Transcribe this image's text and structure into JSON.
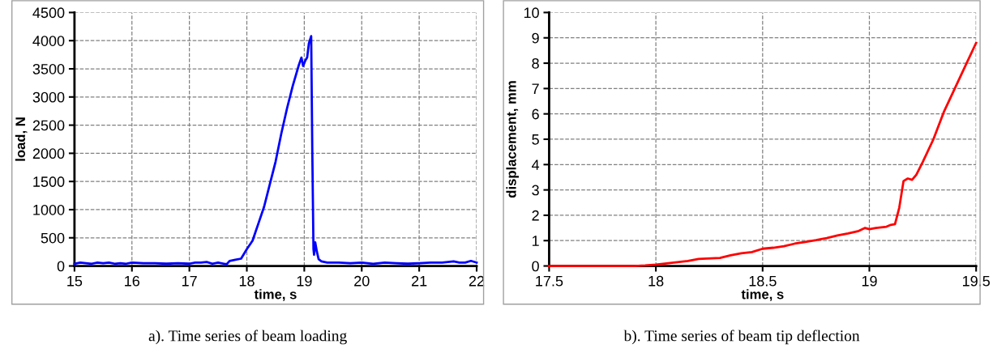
{
  "chart_data": [
    {
      "type": "line",
      "xlabel": "time, s",
      "ylabel": "load, N",
      "annotations": [
        "a). Time series of beam loading"
      ],
      "xlim": [
        15,
        22
      ],
      "xticks": [
        15,
        16,
        17,
        18,
        19,
        20,
        21,
        22
      ],
      "ylim": [
        0,
        4500
      ],
      "yticks": [
        0,
        500,
        1000,
        1500,
        2000,
        2500,
        3000,
        3500,
        4000,
        4500
      ],
      "grid": true,
      "marker": "none",
      "line_style": "solid",
      "series": [
        {
          "color": "#0000ff",
          "x": [
            15,
            15.1,
            15.2,
            15.3,
            15.4,
            15.5,
            15.6,
            15.7,
            15.8,
            15.9,
            16,
            16.2,
            16.4,
            16.6,
            16.8,
            17,
            17.1,
            17.2,
            17.3,
            17.4,
            17.5,
            17.6,
            17.65,
            17.7,
            17.8,
            17.9,
            18,
            18.1,
            18.15,
            18.2,
            18.3,
            18.4,
            18.5,
            18.6,
            18.7,
            18.8,
            18.9,
            18.95,
            18.98,
            19.02,
            19.05,
            19.08,
            19.12,
            19.14,
            19.16,
            19.17,
            19.19,
            19.22,
            19.25,
            19.3,
            19.4,
            19.6,
            19.8,
            20,
            20.2,
            20.4,
            20.6,
            20.8,
            21,
            21.2,
            21.4,
            21.6,
            21.7,
            21.8,
            21.9,
            22
          ],
          "values": [
            40,
            60,
            50,
            40,
            60,
            50,
            60,
            40,
            50,
            40,
            60,
            50,
            50,
            40,
            50,
            40,
            60,
            60,
            70,
            40,
            60,
            40,
            30,
            90,
            110,
            130,
            300,
            450,
            600,
            750,
            1050,
            1450,
            1850,
            2350,
            2800,
            3200,
            3550,
            3700,
            3550,
            3650,
            3700,
            3950,
            4080,
            2000,
            300,
            200,
            420,
            250,
            120,
            80,
            60,
            60,
            50,
            60,
            40,
            60,
            50,
            40,
            50,
            60,
            60,
            80,
            60,
            60,
            90,
            60
          ]
        }
      ]
    },
    {
      "type": "line",
      "xlabel": "time, s",
      "ylabel": "displacement, mm",
      "annotations": [
        "b). Time series of beam tip deflection"
      ],
      "xlim": [
        17.5,
        19.5
      ],
      "xticks": [
        17.5,
        18,
        18.5,
        19,
        19.5
      ],
      "ylim": [
        0,
        10
      ],
      "yticks": [
        0,
        1,
        2,
        3,
        4,
        5,
        6,
        7,
        8,
        9,
        10
      ],
      "grid": true,
      "marker": "none",
      "line_style": "solid",
      "series": [
        {
          "color": "#ff0000",
          "x": [
            17.5,
            17.9,
            17.95,
            18,
            18.05,
            18.1,
            18.15,
            18.2,
            18.3,
            18.35,
            18.4,
            18.45,
            18.5,
            18.55,
            18.6,
            18.65,
            18.7,
            18.75,
            18.8,
            18.85,
            18.9,
            18.95,
            18.98,
            19,
            19.03,
            19.08,
            19.1,
            19.12,
            19.14,
            19.16,
            19.18,
            19.2,
            19.22,
            19.25,
            19.3,
            19.35,
            19.4,
            19.45,
            19.5
          ],
          "values": [
            0,
            0,
            0.02,
            0.05,
            0.1,
            0.15,
            0.2,
            0.28,
            0.32,
            0.42,
            0.5,
            0.55,
            0.68,
            0.72,
            0.78,
            0.88,
            0.95,
            1.02,
            1.1,
            1.2,
            1.28,
            1.38,
            1.5,
            1.45,
            1.5,
            1.55,
            1.62,
            1.65,
            2.3,
            3.35,
            3.45,
            3.4,
            3.6,
            4.1,
            5.0,
            6.1,
            7.0,
            7.9,
            8.8
          ]
        }
      ]
    }
  ]
}
